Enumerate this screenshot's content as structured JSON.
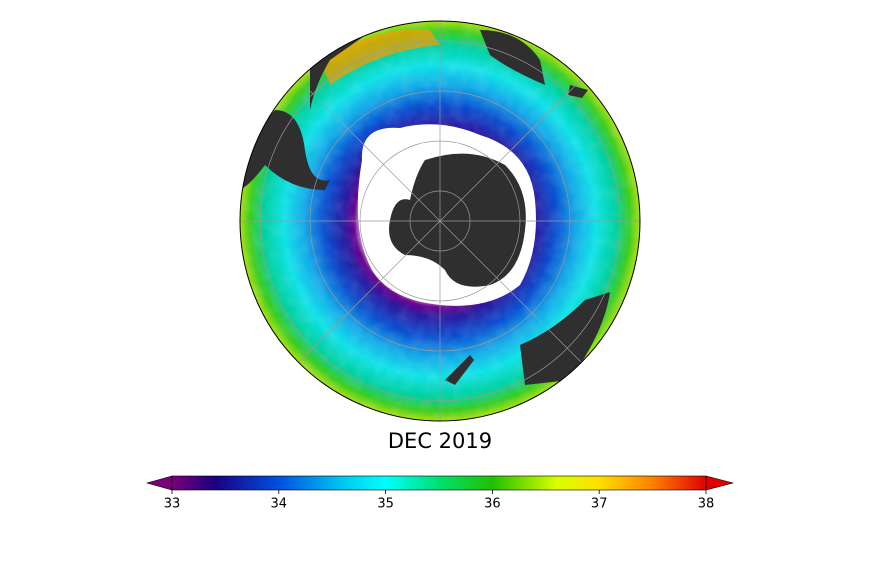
{
  "map": {
    "title": "DEC 2019"
  },
  "colorbar": {
    "lim": [
      33,
      38
    ],
    "ticks": [
      33,
      34,
      35,
      36,
      37,
      38
    ]
  }
}
